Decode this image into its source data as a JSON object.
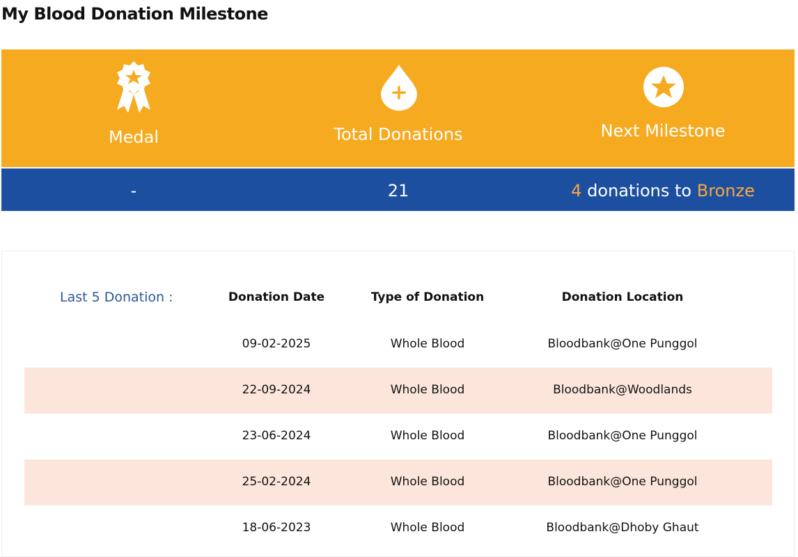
{
  "title": "My Blood Donation Milestone",
  "stats": [
    {
      "label": "Medal",
      "value": "-"
    },
    {
      "label": "Total Donations",
      "value": 21
    },
    {
      "label": "Next Milestone",
      "count": 4,
      "text": "donations to",
      "target": "Bronze"
    }
  ],
  "table": {
    "label": "Last 5 Donation :",
    "headers": [
      "Donation Date",
      "Type of Donation",
      "Donation Location"
    ],
    "rows": [
      [
        "09-02-2025",
        "Whole Blood",
        "Bloodbank@One Punggol"
      ],
      [
        "22-09-2024",
        "Whole Blood",
        "Bloodbank@Woodlands"
      ],
      [
        "23-06-2024",
        "Whole Blood",
        "Bloodbank@One Punggol"
      ],
      [
        "25-02-2024",
        "Whole Blood",
        "Bloodbank@One Punggol"
      ],
      [
        "18-06-2023",
        "Whole Blood",
        "Bloodbank@Dhoby Ghaut"
      ]
    ]
  }
}
